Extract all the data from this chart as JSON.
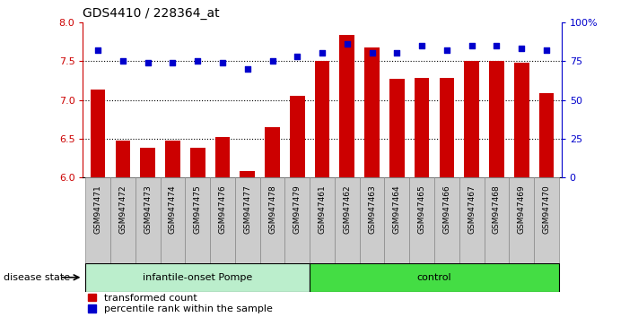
{
  "title": "GDS4410 / 228364_at",
  "samples": [
    "GSM947471",
    "GSM947472",
    "GSM947473",
    "GSM947474",
    "GSM947475",
    "GSM947476",
    "GSM947477",
    "GSM947478",
    "GSM947479",
    "GSM947461",
    "GSM947462",
    "GSM947463",
    "GSM947464",
    "GSM947465",
    "GSM947466",
    "GSM947467",
    "GSM947468",
    "GSM947469",
    "GSM947470"
  ],
  "red_values": [
    7.13,
    6.48,
    6.38,
    6.48,
    6.38,
    6.52,
    6.08,
    6.65,
    7.05,
    7.5,
    7.84,
    7.68,
    7.27,
    7.28,
    7.28,
    7.5,
    7.5,
    7.48,
    7.09
  ],
  "blue_values": [
    82,
    75,
    74,
    74,
    75,
    74,
    70,
    75,
    78,
    80,
    86,
    80,
    80,
    85,
    82,
    85,
    85,
    83,
    82
  ],
  "groups": [
    "infantile-onset Pompe",
    "infantile-onset Pompe",
    "infantile-onset Pompe",
    "infantile-onset Pompe",
    "infantile-onset Pompe",
    "infantile-onset Pompe",
    "infantile-onset Pompe",
    "infantile-onset Pompe",
    "infantile-onset Pompe",
    "control",
    "control",
    "control",
    "control",
    "control",
    "control",
    "control",
    "control",
    "control",
    "control"
  ],
  "ylim_left": [
    6.0,
    8.0
  ],
  "ylim_right": [
    0,
    100
  ],
  "yticks_left": [
    6.0,
    6.5,
    7.0,
    7.5,
    8.0
  ],
  "yticks_right": [
    0,
    25,
    50,
    75,
    100
  ],
  "ytick_labels_right": [
    "0",
    "25",
    "50",
    "75",
    "100%"
  ],
  "hlines": [
    6.5,
    7.0,
    7.5
  ],
  "bar_color": "#cc0000",
  "dot_color": "#0000cc",
  "group1_color": "#bbeecc",
  "group2_color": "#44dd44",
  "tick_label_color": "#cc0000",
  "right_tick_color": "#0000cc",
  "disease_state_label": "disease state",
  "legend_red": "transformed count",
  "legend_blue": "percentile rank within the sample",
  "pompe_count": 9,
  "control_count": 10
}
